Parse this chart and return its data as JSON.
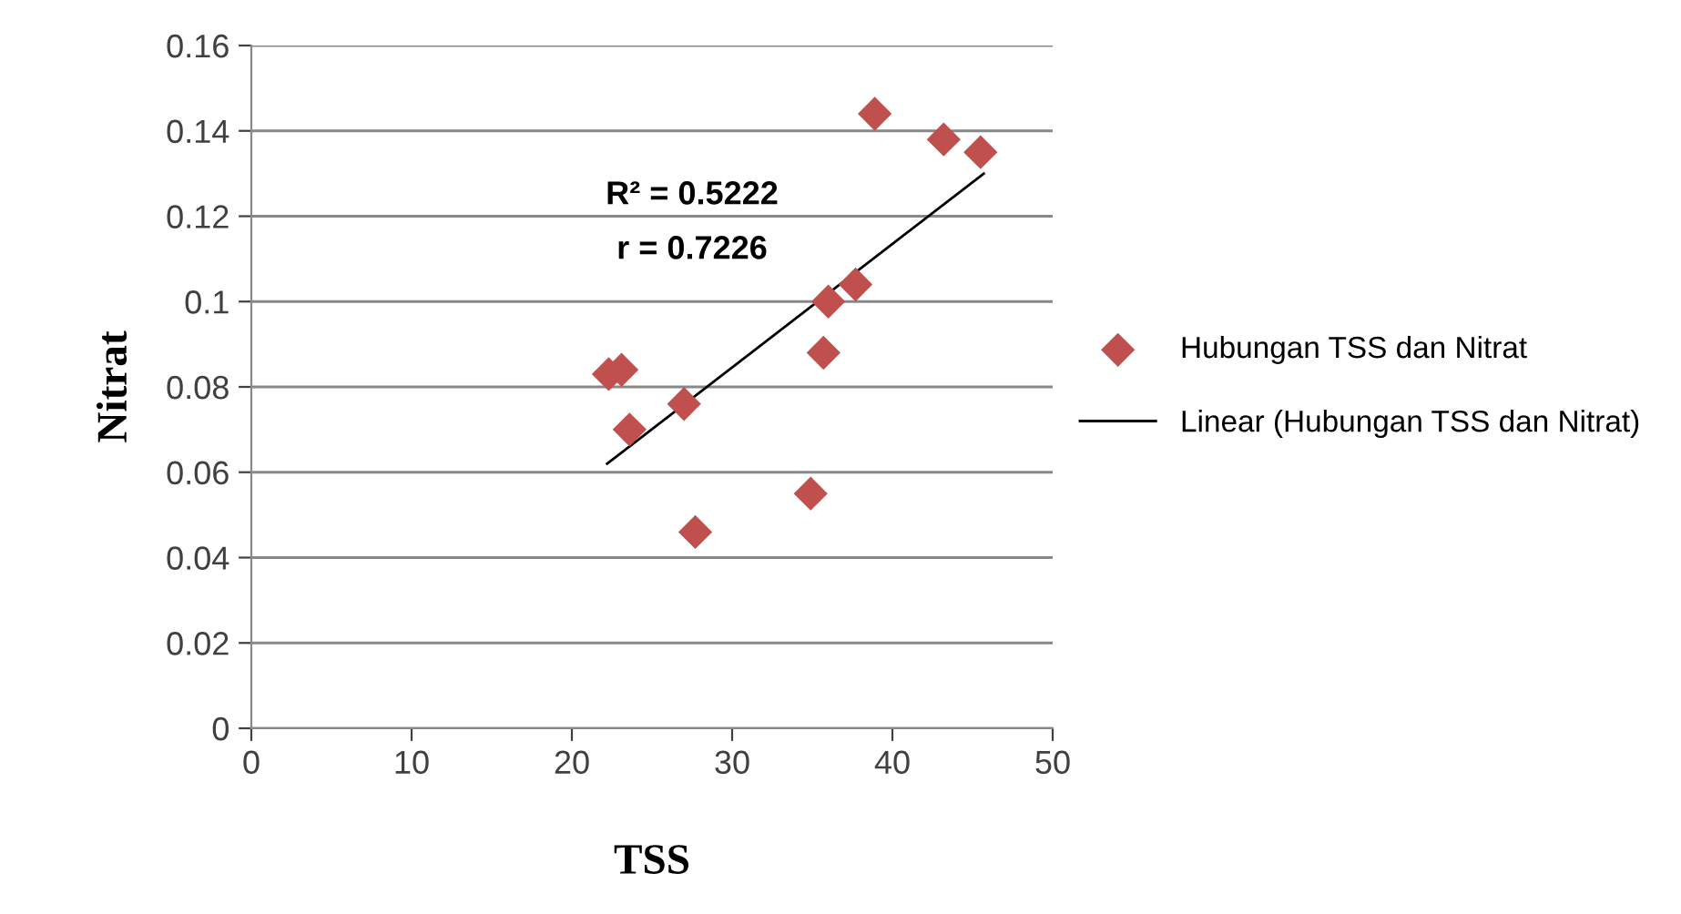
{
  "chart_data": {
    "type": "scatter",
    "xlabel": "TSS",
    "ylabel": "Nitrat",
    "series": [
      {
        "name": "Hubungan TSS dan Nitrat",
        "color": "#c0504d",
        "marker": "diamond",
        "x": [
          22.3,
          23.1,
          23.6,
          27.0,
          27.7,
          34.9,
          35.7,
          36.0,
          37.7,
          38.9,
          43.2,
          45.5
        ],
        "values": [
          0.083,
          0.084,
          0.07,
          0.076,
          0.046,
          0.055,
          0.088,
          0.1,
          0.104,
          0.144,
          0.138,
          0.135
        ]
      },
      {
        "name": "Linear (Hubungan TSS dan Nitrat)",
        "type": "line",
        "color": "#000000",
        "marker": "none",
        "x": [
          22.2,
          45.7
        ],
        "values": [
          0.062,
          0.13
        ]
      }
    ],
    "annotations": [
      "R² = 0.5222",
      "r = 0.7226"
    ],
    "xlim": [
      0,
      50
    ],
    "xticks": [
      0,
      10,
      20,
      30,
      40,
      50
    ],
    "ylim": [
      0,
      0.16
    ],
    "yticks": [
      {
        "value": 0,
        "label": "0"
      },
      {
        "value": 0.02,
        "label": "0.02"
      },
      {
        "value": 0.04,
        "label": "0.04"
      },
      {
        "value": 0.06,
        "label": "0.06"
      },
      {
        "value": 0.08,
        "label": "0.08"
      },
      {
        "value": 0.1,
        "label": "0.1"
      },
      {
        "value": 0.12,
        "label": "0.12"
      },
      {
        "value": 0.14,
        "label": "0.14"
      },
      {
        "value": 0.16,
        "label": "0.16"
      }
    ],
    "grid": "y",
    "legend": "right"
  }
}
